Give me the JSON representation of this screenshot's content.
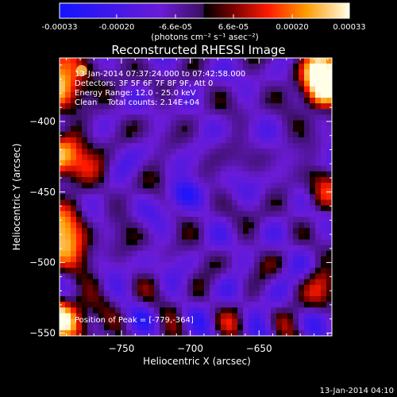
{
  "chart_data": {
    "type": "heatmap",
    "title": "Reconstructed RHESSI Image",
    "xlabel": "Heliocentric X (arcsec)",
    "ylabel": "Heliocentric Y (arcsec)",
    "xlim": [
      -795,
      -597
    ],
    "ylim": [
      -552,
      -355
    ],
    "x_ticks": [
      -750,
      -700,
      -650
    ],
    "y_ticks": [
      -400,
      -450,
      -500,
      -550
    ],
    "colorbar": {
      "range": [
        -0.00033,
        0.00033
      ],
      "ticks": [
        "-0.00033",
        "-0.00020",
        "-6.6e-05",
        "6.6e-05",
        "0.00020",
        "0.00033"
      ],
      "tick_values": [
        -0.00033,
        -0.0002,
        -6.6e-05,
        6.6e-05,
        0.0002,
        0.00033
      ],
      "unit_label": "(photons cm⁻² s⁻¹ asec⁻²)"
    },
    "annotations": [
      "13-Jan-2014 07:37:24.000 to 07:42:58.000",
      "Detectors: 3F 5F 6F 7F 8F 9F, Att 0",
      "Energy Range: 12.0 - 25.0 keV",
      "Clean    Total counts: 2.14E+04",
      "Position of Peak = [-779,-364]"
    ],
    "peak": {
      "x": -779,
      "y": -364
    },
    "colors": {
      "background": "#000000",
      "text": "#ffffff"
    }
  },
  "footer": {
    "timestamp": "13-Jan-2014 04:10"
  }
}
